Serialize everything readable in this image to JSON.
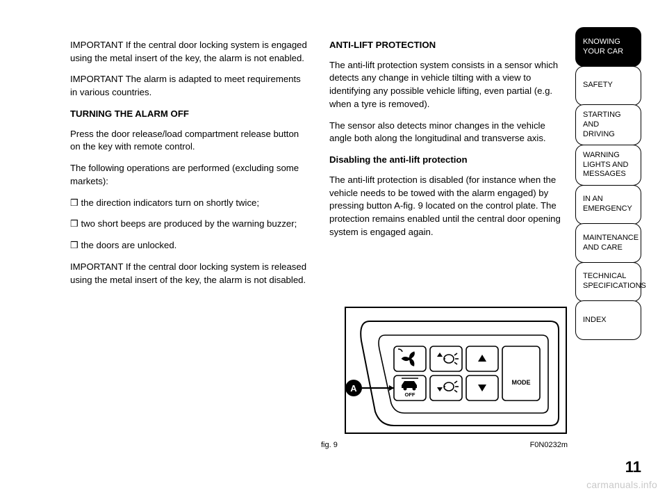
{
  "left": {
    "p1": "IMPORTANT If the central door locking system is engaged using the metal insert of the key, the alarm is not enabled.",
    "p2": "IMPORTANT The alarm is adapted to meet requirements in various countries.",
    "h1": "TURNING THE ALARM OFF",
    "p3": "Press the door release/load compartment release button on the key with remote control.",
    "p4": "The following operations are performed (excluding some markets):",
    "b1": "❒ the direction indicators turn on shortly twice;",
    "b2": "❒ two short beeps are produced by the warning buzzer;",
    "b3": "❒ the doors are unlocked.",
    "p5": "IMPORTANT If the central door locking system is released using the metal insert of the key, the alarm is not disabled."
  },
  "right": {
    "h1": "ANTI-LIFT PROTECTION",
    "p1": "The anti-lift protection system consists in a sensor which detects any change in vehicle tilting with a view to identifying any possible vehicle lifting, even partial (e.g. when a tyre is removed).",
    "p2": "The sensor also detects minor changes in the vehicle angle both along the longitudinal and transverse axis.",
    "sub": "Disabling the anti-lift protection",
    "p3": "The anti-lift protection is disabled (for instance when the vehicle needs to be towed with the alarm engaged) by pressing button A-fig. 9 located on the control plate. The protection remains enabled until the central door opening system is engaged again."
  },
  "tabs": [
    {
      "label": "KNOWING\nYOUR CAR",
      "active": true
    },
    {
      "label": "SAFETY",
      "active": false
    },
    {
      "label": "STARTING\nAND\nDRIVING",
      "active": false
    },
    {
      "label": "WARNING\nLIGHTS AND\nMESSAGES",
      "active": false
    },
    {
      "label": "IN AN\nEMERGENCY",
      "active": false
    },
    {
      "label": "MAINTENANCE\nAND CARE",
      "active": false
    },
    {
      "label": "TECHNICAL\nSPECIFICATIONS",
      "active": false
    },
    {
      "label": "INDEX",
      "active": false
    }
  ],
  "figure": {
    "label": "fig. 9",
    "code": "F0N0232m",
    "callout": "A",
    "mode": "MODE",
    "off": "OFF"
  },
  "pagenum": "11",
  "watermark": "carmanuals.info",
  "colors": {
    "ink": "#000000",
    "bg": "#ffffff",
    "wm": "rgba(0,0,0,0.22)"
  }
}
